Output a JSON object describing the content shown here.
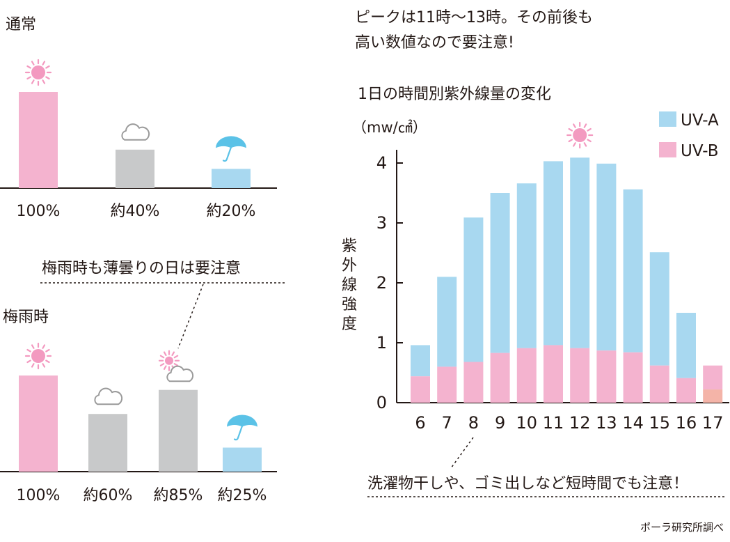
{
  "colors": {
    "uva": "#a8d8f0",
    "uvb": "#f4b3cf",
    "uvb_17": "#f4b4a8",
    "cloud_bar": "#c8c9ca",
    "rain_bar": "#a8d8f0",
    "sun_bar": "#f4b3cf",
    "sun_icon": "#f39ac0",
    "umbrella_icon": "#5bc2e7",
    "axis": "#231815"
  },
  "icons": [
    "sun-icon",
    "cloud-icon",
    "umbrella-icon"
  ],
  "normal_panel": {
    "title": "通常",
    "bars": [
      {
        "label": "100%",
        "value": 100,
        "icon": "sun-icon",
        "color": "sun_bar"
      },
      {
        "label": "約40%",
        "value": 40,
        "icon": "cloud-icon",
        "color": "cloud_bar"
      },
      {
        "label": "約20%",
        "value": 20,
        "icon": "umbrella-icon",
        "color": "rain_bar"
      }
    ]
  },
  "rainy_panel": {
    "title": "梅雨時",
    "note": "梅雨時も薄曇りの日は要注意",
    "bars": [
      {
        "label": "100%",
        "value": 100,
        "icon": "sun-icon",
        "color": "sun_bar"
      },
      {
        "label": "約60%",
        "value": 60,
        "icon": "cloud-icon",
        "color": "cloud_bar"
      },
      {
        "label": "約85%",
        "value": 85,
        "icon": "sun-cloud-icon",
        "color": "cloud_bar"
      },
      {
        "label": "約25%",
        "value": 25,
        "icon": "umbrella-icon",
        "color": "rain_bar"
      }
    ]
  },
  "headline": {
    "line1": "ピークは11時〜13時。その前後も",
    "line2": "高い数値なので要注意!"
  },
  "note_bottom": "洗濯物干しや、ゴミ出しなど短時間でも注意！",
  "source": "ポーラ研究所調べ",
  "chart_data": {
    "type": "bar",
    "stacked": true,
    "title": "1日の時間別紫外線量の変化",
    "unit": "（mw/㎠）",
    "ylabel": "紫外線強度",
    "ylim": [
      0,
      4
    ],
    "yticks": [
      0,
      1,
      2,
      3,
      4
    ],
    "legend_position": "top-right",
    "categories": [
      "6",
      "7",
      "8",
      "9",
      "10",
      "11",
      "12",
      "13",
      "14",
      "15",
      "16",
      "17"
    ],
    "series": [
      {
        "name": "UV-B",
        "values": [
          0.44,
          0.6,
          0.68,
          0.83,
          0.91,
          0.96,
          0.91,
          0.87,
          0.84,
          0.62,
          0.41,
          0.22
        ]
      },
      {
        "name": "UV-A",
        "values": [
          0.52,
          1.5,
          2.41,
          2.67,
          2.75,
          3.07,
          3.18,
          3.12,
          2.72,
          1.89,
          1.09,
          0.4
        ]
      }
    ]
  }
}
